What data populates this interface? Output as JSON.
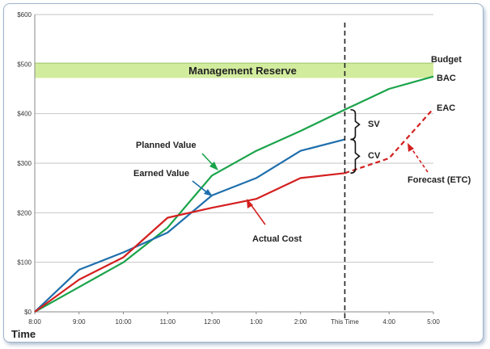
{
  "chart_data": {
    "type": "line",
    "title": "",
    "xlabel": "Time",
    "ylabel": "",
    "ylim": [
      0,
      600
    ],
    "categories": [
      "8:00",
      "9:00",
      "10:00",
      "11:00",
      "12:00",
      "1:00",
      "2:00",
      "This Time",
      "4:00",
      "5:00"
    ],
    "y_ticks": [
      "$0",
      "$100",
      "$200",
      "$300",
      "$400",
      "$500",
      "$600"
    ],
    "series": [
      {
        "name": "Planned Value",
        "color": "#1aa34a",
        "values": [
          0,
          50,
          100,
          170,
          275,
          325,
          365,
          408,
          450,
          475
        ]
      },
      {
        "name": "Earned Value",
        "color": "#1f6fad",
        "values": [
          0,
          85,
          120,
          160,
          235,
          270,
          325,
          348,
          null,
          null
        ]
      },
      {
        "name": "Actual Cost",
        "color": "#d42020",
        "values": [
          0,
          65,
          110,
          190,
          210,
          228,
          270,
          280,
          null,
          null
        ]
      },
      {
        "name": "Forecast (ETC)",
        "color": "#d42020",
        "dashed": true,
        "values": [
          null,
          null,
          null,
          null,
          null,
          null,
          null,
          280,
          310,
          410
        ]
      }
    ],
    "management_reserve": {
      "label": "Management Reserve",
      "low": 472,
      "high": 502,
      "color": "#d2ec9e"
    },
    "status_date_index": 7,
    "annotations": {
      "planned_value": "Planned Value",
      "earned_value": "Earned Value",
      "actual_cost": "Actual Cost",
      "forecast": "Forecast (ETC)",
      "budget": "Budget",
      "bac": "BAC",
      "eac": "EAC",
      "sv": "SV",
      "cv": "CV"
    }
  }
}
